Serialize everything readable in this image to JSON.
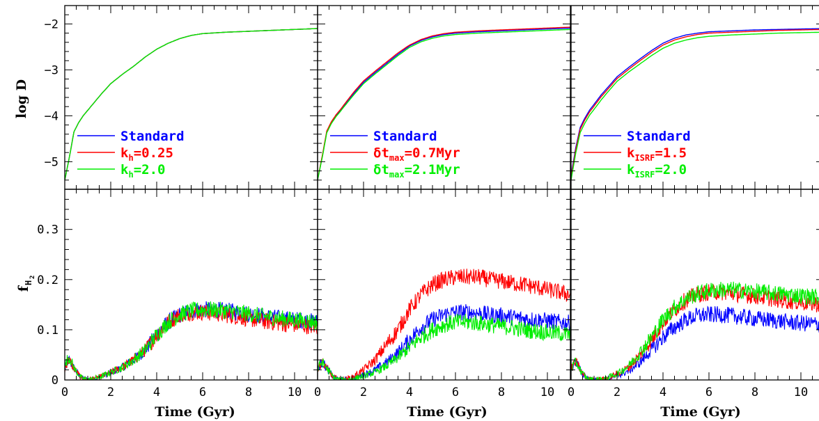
{
  "colors": {
    "blue": "#0000ff",
    "red": "#ff0000",
    "green": "#00ee00",
    "axis": "#000000"
  },
  "chart_data": {
    "type": "line",
    "xlabel": "Time (Gyr)",
    "x_ticks": [
      "0",
      "2",
      "4",
      "6",
      "8",
      "10"
    ],
    "xlim": [
      0,
      11
    ],
    "panels_top": {
      "ylabel": "log D",
      "ylim": [
        -5.6,
        -1.6
      ],
      "y_ticks": [
        "-2",
        "-3",
        "-4",
        "-5"
      ],
      "x": [
        0,
        0.2,
        0.4,
        0.6,
        0.8,
        1,
        1.3,
        1.6,
        2,
        2.5,
        3,
        3.5,
        4,
        4.5,
        5,
        5.5,
        6,
        7,
        8,
        9,
        10,
        11
      ],
      "columns": [
        {
          "series": [
            {
              "name": "Standard",
              "color": "blue",
              "values": [
                -5.4,
                -4.9,
                -4.35,
                -4.15,
                -4.0,
                -3.88,
                -3.7,
                -3.52,
                -3.3,
                -3.1,
                -2.92,
                -2.72,
                -2.55,
                -2.42,
                -2.32,
                -2.25,
                -2.21,
                -2.18,
                -2.16,
                -2.14,
                -2.12,
                -2.1
              ]
            },
            {
              "name": "k_h=0.25",
              "color": "red",
              "values": [
                -5.4,
                -4.9,
                -4.35,
                -4.15,
                -4.0,
                -3.88,
                -3.7,
                -3.52,
                -3.3,
                -3.1,
                -2.92,
                -2.72,
                -2.55,
                -2.42,
                -2.32,
                -2.25,
                -2.21,
                -2.18,
                -2.16,
                -2.14,
                -2.12,
                -2.1
              ]
            },
            {
              "name": "k_h=2.0",
              "color": "green",
              "values": [
                -5.4,
                -4.9,
                -4.35,
                -4.15,
                -4.0,
                -3.88,
                -3.7,
                -3.52,
                -3.3,
                -3.1,
                -2.92,
                -2.72,
                -2.55,
                -2.42,
                -2.32,
                -2.25,
                -2.21,
                -2.18,
                -2.16,
                -2.14,
                -2.12,
                -2.1
              ]
            }
          ],
          "legend": [
            {
              "text": "Standard",
              "color": "blue",
              "main": "Standard",
              "sub": "",
              "rest": ""
            },
            {
              "text": "kh=0.25",
              "color": "red",
              "main": "k",
              "sub": "h",
              "rest": "=0.25"
            },
            {
              "text": "kh=2.0",
              "color": "green",
              "main": "k",
              "sub": "h",
              "rest": "=2.0"
            }
          ]
        },
        {
          "series": [
            {
              "name": "Standard",
              "color": "blue",
              "values": [
                -5.4,
                -4.9,
                -4.35,
                -4.15,
                -4.0,
                -3.88,
                -3.68,
                -3.5,
                -3.27,
                -3.06,
                -2.86,
                -2.66,
                -2.48,
                -2.36,
                -2.28,
                -2.23,
                -2.2,
                -2.17,
                -2.15,
                -2.13,
                -2.11,
                -2.09
              ]
            },
            {
              "name": "dt_max=0.7Myr",
              "color": "red",
              "values": [
                -5.4,
                -4.88,
                -4.33,
                -4.13,
                -3.98,
                -3.86,
                -3.66,
                -3.47,
                -3.24,
                -3.03,
                -2.83,
                -2.63,
                -2.46,
                -2.34,
                -2.26,
                -2.21,
                -2.18,
                -2.15,
                -2.13,
                -2.11,
                -2.09,
                -2.07
              ]
            },
            {
              "name": "dt_max=2.1Myr",
              "color": "green",
              "values": [
                -5.4,
                -4.92,
                -4.37,
                -4.17,
                -4.02,
                -3.9,
                -3.71,
                -3.53,
                -3.3,
                -3.09,
                -2.89,
                -2.69,
                -2.51,
                -2.39,
                -2.31,
                -2.26,
                -2.23,
                -2.2,
                -2.18,
                -2.16,
                -2.14,
                -2.12
              ]
            }
          ],
          "legend": [
            {
              "text": "Standard",
              "color": "blue",
              "main": "Standard",
              "sub": "",
              "rest": ""
            },
            {
              "text": "δtmax=0.7Myr",
              "color": "red",
              "main": "δt",
              "sub": "max",
              "rest": "=0.7Myr"
            },
            {
              "text": "δtmax=2.1Myr",
              "color": "green",
              "main": "δt",
              "sub": "max",
              "rest": "=2.1Myr"
            }
          ]
        },
        {
          "series": [
            {
              "name": "Standard",
              "color": "blue",
              "values": [
                -5.3,
                -4.7,
                -4.25,
                -4.05,
                -3.88,
                -3.75,
                -3.55,
                -3.38,
                -3.15,
                -2.95,
                -2.76,
                -2.58,
                -2.42,
                -2.31,
                -2.24,
                -2.2,
                -2.17,
                -2.15,
                -2.13,
                -2.12,
                -2.11,
                -2.1
              ]
            },
            {
              "name": "k_ISRF=1.5",
              "color": "red",
              "values": [
                -5.35,
                -4.75,
                -4.29,
                -4.09,
                -3.92,
                -3.79,
                -3.59,
                -3.42,
                -3.19,
                -2.99,
                -2.8,
                -2.62,
                -2.46,
                -2.35,
                -2.28,
                -2.23,
                -2.2,
                -2.18,
                -2.16,
                -2.14,
                -2.13,
                -2.12
              ]
            },
            {
              "name": "k_ISRF=2.0",
              "color": "green",
              "values": [
                -5.4,
                -4.82,
                -4.36,
                -4.16,
                -3.99,
                -3.86,
                -3.66,
                -3.48,
                -3.25,
                -3.05,
                -2.87,
                -2.69,
                -2.53,
                -2.42,
                -2.35,
                -2.3,
                -2.27,
                -2.24,
                -2.22,
                -2.2,
                -2.19,
                -2.18
              ]
            }
          ],
          "legend": [
            {
              "text": "Standard",
              "color": "blue",
              "main": "Standard",
              "sub": "",
              "rest": ""
            },
            {
              "text": "kISRF=1.5",
              "color": "red",
              "main": "k",
              "sub": "ISRF",
              "rest": "=1.5"
            },
            {
              "text": "kISRF=2.0",
              "color": "green",
              "main": "k",
              "sub": "ISRF",
              "rest": "=2.0"
            }
          ]
        }
      ]
    },
    "panels_bottom": {
      "ylabel_main": "f",
      "ylabel_sub": "H",
      "ylabel_subsub": "2",
      "ylim": [
        0,
        0.38
      ],
      "y_ticks": [
        "0",
        "0.1",
        "0.2",
        "0.3"
      ],
      "x": [
        0,
        0.1,
        0.2,
        0.3,
        0.45,
        0.7,
        1,
        1.5,
        2,
        2.5,
        3,
        3.5,
        4,
        4.5,
        5,
        5.5,
        6,
        6.5,
        7,
        7.5,
        8,
        8.5,
        9,
        9.5,
        10,
        10.5,
        11
      ],
      "noise": 0.012,
      "columns": [
        {
          "series": [
            {
              "name": "Standard",
              "color": "blue",
              "values": [
                0.02,
                0.035,
                0.04,
                0.03,
                0.02,
                0.005,
                0,
                0.005,
                0.015,
                0.025,
                0.04,
                0.06,
                0.09,
                0.115,
                0.13,
                0.138,
                0.14,
                0.14,
                0.138,
                0.135,
                0.132,
                0.128,
                0.125,
                0.122,
                0.12,
                0.118,
                0.115
              ]
            },
            {
              "name": "k_h=0.25",
              "color": "red",
              "values": [
                0.02,
                0.035,
                0.04,
                0.03,
                0.02,
                0.005,
                0,
                0.005,
                0.015,
                0.025,
                0.04,
                0.06,
                0.09,
                0.115,
                0.13,
                0.135,
                0.135,
                0.133,
                0.13,
                0.126,
                0.122,
                0.118,
                0.115,
                0.112,
                0.11,
                0.108,
                0.105
              ]
            },
            {
              "name": "k_h=2.0",
              "color": "green",
              "values": [
                0.025,
                0.04,
                0.045,
                0.035,
                0.02,
                0.005,
                0,
                0.005,
                0.015,
                0.025,
                0.04,
                0.06,
                0.09,
                0.115,
                0.13,
                0.138,
                0.14,
                0.14,
                0.138,
                0.135,
                0.132,
                0.128,
                0.125,
                0.122,
                0.12,
                0.118,
                0.115
              ]
            }
          ]
        },
        {
          "series": [
            {
              "name": "Standard",
              "color": "blue",
              "values": [
                0.02,
                0.03,
                0.035,
                0.03,
                0.02,
                0.005,
                0,
                0.003,
                0.01,
                0.02,
                0.035,
                0.055,
                0.08,
                0.105,
                0.12,
                0.13,
                0.135,
                0.135,
                0.133,
                0.13,
                0.128,
                0.125,
                0.122,
                0.12,
                0.118,
                0.115,
                0.113
              ]
            },
            {
              "name": "dt_max=0.7Myr",
              "color": "red",
              "values": [
                0.02,
                0.03,
                0.035,
                0.03,
                0.02,
                0.005,
                0,
                0.005,
                0.02,
                0.04,
                0.07,
                0.1,
                0.14,
                0.17,
                0.19,
                0.2,
                0.205,
                0.205,
                0.205,
                0.2,
                0.197,
                0.193,
                0.19,
                0.185,
                0.18,
                0.175,
                0.17
              ]
            },
            {
              "name": "dt_max=2.1Myr",
              "color": "green",
              "values": [
                0.02,
                0.03,
                0.035,
                0.03,
                0.02,
                0.005,
                0,
                0.002,
                0.008,
                0.015,
                0.028,
                0.045,
                0.065,
                0.085,
                0.1,
                0.11,
                0.115,
                0.115,
                0.113,
                0.11,
                0.107,
                0.104,
                0.1,
                0.097,
                0.095,
                0.093,
                0.09
              ]
            }
          ]
        },
        {
          "series": [
            {
              "name": "Standard",
              "color": "blue",
              "values": [
                0.02,
                0.03,
                0.035,
                0.03,
                0.015,
                0.003,
                0,
                0.002,
                0.008,
                0.018,
                0.035,
                0.06,
                0.085,
                0.105,
                0.12,
                0.128,
                0.13,
                0.13,
                0.128,
                0.125,
                0.122,
                0.12,
                0.118,
                0.115,
                0.113,
                0.112,
                0.11
              ]
            },
            {
              "name": "k_ISRF=1.5",
              "color": "red",
              "values": [
                0.02,
                0.03,
                0.035,
                0.03,
                0.015,
                0.003,
                0,
                0.003,
                0.012,
                0.025,
                0.05,
                0.08,
                0.115,
                0.14,
                0.16,
                0.17,
                0.175,
                0.175,
                0.173,
                0.17,
                0.167,
                0.164,
                0.16,
                0.157,
                0.155,
                0.152,
                0.15
              ]
            },
            {
              "name": "k_ISRF=2.0",
              "color": "green",
              "values": [
                0.02,
                0.03,
                0.035,
                0.03,
                0.015,
                0.003,
                0,
                0.003,
                0.012,
                0.028,
                0.055,
                0.085,
                0.12,
                0.145,
                0.162,
                0.172,
                0.178,
                0.18,
                0.18,
                0.178,
                0.176,
                0.174,
                0.172,
                0.17,
                0.168,
                0.166,
                0.165
              ]
            }
          ]
        }
      ]
    }
  }
}
